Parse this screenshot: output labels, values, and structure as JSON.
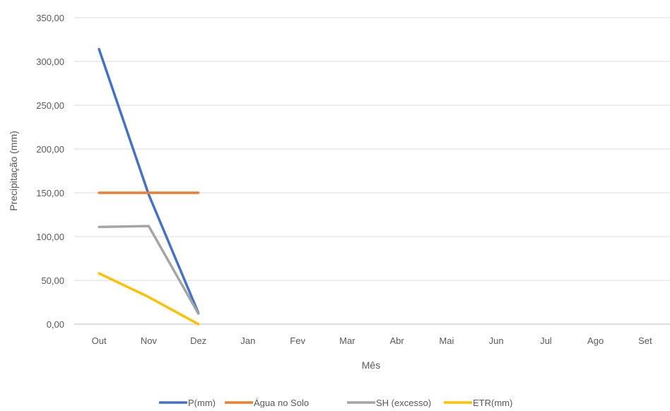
{
  "chart_data": {
    "type": "line",
    "title": "",
    "xlabel": "Mês",
    "ylabel": "Precipitação (mm)",
    "categories": [
      "Out",
      "Nov",
      "Dez",
      "Jan",
      "Fev",
      "Mar",
      "Abr",
      "Mai",
      "Jun",
      "Jul",
      "Ago",
      "Set"
    ],
    "ylim": [
      0,
      350
    ],
    "yticks": [
      "0,00",
      "50,00",
      "100,00",
      "150,00",
      "200,00",
      "250,00",
      "300,00",
      "350,00"
    ],
    "grid": true,
    "legend_position": "bottom",
    "series": [
      {
        "name": "P(mm)",
        "color": "#4472C4",
        "values": [
          314,
          148,
          13,
          null,
          null,
          null,
          null,
          null,
          null,
          null,
          null,
          null
        ]
      },
      {
        "name": "Água no Solo",
        "color": "#ED7D31",
        "values": [
          150,
          150,
          150,
          null,
          null,
          null,
          null,
          null,
          null,
          null,
          null,
          null
        ]
      },
      {
        "name": "SH (excesso)",
        "color": "#A5A5A5",
        "values": [
          111,
          112,
          12,
          null,
          null,
          null,
          null,
          null,
          null,
          null,
          null,
          null
        ]
      },
      {
        "name": "ETR(mm)",
        "color": "#FFC000",
        "values": [
          58,
          31,
          0,
          null,
          null,
          null,
          null,
          null,
          null,
          null,
          null,
          null
        ]
      }
    ]
  }
}
